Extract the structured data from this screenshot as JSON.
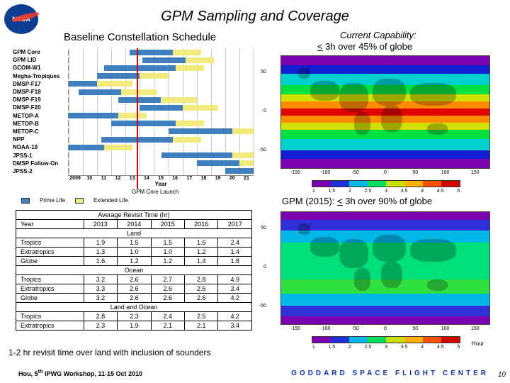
{
  "title": "GPM Sampling and Coverage",
  "subtitle_left": "Baseline Constellation Schedule",
  "capability_label": "Current Capability:",
  "capability_text_a": "<",
  "capability_text_b": " 3h over 45% of globe",
  "gpm2015_a": "GPM (2015): ",
  "gpm2015_b": "<",
  "gpm2015_c": " 3h over 90% of globe",
  "gantt": {
    "years": [
      "2009",
      "10",
      "11",
      "12",
      "13",
      "14",
      "15",
      "16",
      "17",
      "18",
      "19",
      "20",
      "21"
    ],
    "year_axis_label": "Year",
    "core_launch_label": "GPM Core Launch",
    "prime_color": "#3f7fbf",
    "extended_color": "#f2ea7a",
    "legend_prime": "Prime Life",
    "legend_extended": "Extended Life",
    "rows": [
      {
        "label": "GPM Core",
        "prime": [
          4.3,
          3.0
        ],
        "ext": [
          7.3,
          2.0
        ]
      },
      {
        "label": "GPM LID",
        "prime": [
          5.2,
          3.0
        ],
        "ext": [
          8.2,
          2.0
        ]
      },
      {
        "label": "GCOM-W1",
        "prime": [
          2.5,
          5.0
        ],
        "ext": [
          7.5,
          2.0
        ]
      },
      {
        "label": "Megha-Tropiques",
        "prime": [
          2.0,
          3.0
        ],
        "ext": [
          5.0,
          2.0
        ]
      },
      {
        "label": "DMSP-F17",
        "prime": [
          0.0,
          2.0
        ],
        "ext": [
          2.0,
          2.5
        ]
      },
      {
        "label": "DMSP-F18",
        "prime": [
          0.7,
          3.0
        ],
        "ext": [
          3.7,
          2.5
        ]
      },
      {
        "label": "DMSP-F19",
        "prime": [
          3.5,
          3.0
        ],
        "ext": [
          6.5,
          2.5
        ]
      },
      {
        "label": "DMSP-F20",
        "prime": [
          5.0,
          3.0
        ],
        "ext": [
          8.0,
          2.5
        ]
      },
      {
        "label": "METOP-A",
        "prime": [
          0.0,
          3.5
        ],
        "ext": [
          3.5,
          2.0
        ]
      },
      {
        "label": "METOP-B",
        "prime": [
          3.0,
          4.5
        ],
        "ext": [
          7.5,
          2.0
        ]
      },
      {
        "label": "METOP-C",
        "prime": [
          7.0,
          4.5
        ],
        "ext": [
          11.5,
          1.5
        ]
      },
      {
        "label": "NPP",
        "prime": [
          2.3,
          5.0
        ],
        "ext": [
          7.3,
          2.0
        ]
      },
      {
        "label": "NOAA-19",
        "prime": [
          0.0,
          2.5
        ],
        "ext": [
          2.5,
          2.0
        ]
      },
      {
        "label": "JPSS-1",
        "prime": [
          6.5,
          5.0
        ],
        "ext": [
          11.5,
          1.5
        ]
      },
      {
        "label": "DMSP Follow-On",
        "prime": [
          9.0,
          3.0
        ],
        "ext": [
          12.0,
          1.0
        ]
      },
      {
        "label": "JPSS-2",
        "prime": [
          11.0,
          2.0
        ],
        "ext": [
          0,
          0
        ]
      }
    ]
  },
  "table": {
    "title": "Average Revisit Time (hr)",
    "year_header": "Year",
    "years": [
      "2013",
      "2014",
      "2015",
      "2016",
      "2017"
    ],
    "sections": [
      {
        "name": "Land",
        "rows": [
          {
            "label": "Tropics",
            "vals": [
              "1.9",
              "1.5",
              "1.5",
              "1.6",
              "2.4"
            ]
          },
          {
            "label": "Extratropics",
            "vals": [
              "1.3",
              "1.0",
              "1.0",
              "1.2",
              "1.4"
            ]
          },
          {
            "label": "Globe",
            "vals": [
              "1.6",
              "1.2",
              "1.2",
              "1.4",
              "1.8"
            ]
          }
        ]
      },
      {
        "name": "Ocean",
        "rows": [
          {
            "label": "Tropics",
            "vals": [
              "3.2",
              "2.6",
              "2.7",
              "2.8",
              "4.9"
            ]
          },
          {
            "label": "Extratropics",
            "vals": [
              "3.3",
              "2.6",
              "2.6",
              "2.6",
              "3.4"
            ]
          },
          {
            "label": "Globe",
            "vals": [
              "3.2",
              "2.6",
              "2.6",
              "2.6",
              "4.2"
            ]
          }
        ]
      },
      {
        "name": "Land and Ocean",
        "rows": [
          {
            "label": "Tropics",
            "vals": [
              "2.8",
              "2.3",
              "2.4",
              "2.5",
              "4.2"
            ]
          },
          {
            "label": "Extratropics",
            "vals": [
              "2.3",
              "1.9",
              "2.1",
              "2.1",
              "3.4"
            ]
          }
        ]
      }
    ]
  },
  "footnote": "1-2 hr revisit time over land with inclusion of sounders",
  "citation_a": "Hou, 5",
  "citation_b": "th",
  "citation_c": "  IPWG Workshop, 11-15 Oct 2010",
  "center_label": "GODDARD SPACE FLIGHT CENTER",
  "page_number": "10",
  "hour_label": "Hour",
  "map": {
    "lat_ticks": [
      "50",
      "0",
      "-50"
    ],
    "lon_ticks": [
      "-150",
      "-100",
      "-50",
      "0",
      "50",
      "100",
      "150"
    ],
    "bands_top": [
      {
        "c": "#7b00b0",
        "h": 10
      },
      {
        "c": "#1020d0",
        "h": 10
      },
      {
        "c": "#00d0d0",
        "h": 12
      },
      {
        "c": "#00e040",
        "h": 10
      },
      {
        "c": "#d0e000",
        "h": 8
      },
      {
        "c": "#ff8c00",
        "h": 8
      },
      {
        "c": "#e00000",
        "h": 8
      },
      {
        "c": "#ff8c00",
        "h": 8
      },
      {
        "c": "#d0e000",
        "h": 8
      },
      {
        "c": "#00e040",
        "h": 10
      },
      {
        "c": "#00d0d0",
        "h": 12
      },
      {
        "c": "#1020d0",
        "h": 10
      },
      {
        "c": "#7b00b0",
        "h": 10
      }
    ],
    "bands_bot": [
      {
        "c": "#7b00b0",
        "h": 8
      },
      {
        "c": "#3030d8",
        "h": 10
      },
      {
        "c": "#00b8e8",
        "h": 12
      },
      {
        "c": "#00e07a",
        "h": 36
      },
      {
        "c": "#30e040",
        "h": 14
      },
      {
        "c": "#00e07a",
        "h": 0
      },
      {
        "c": "#00b8e8",
        "h": 12
      },
      {
        "c": "#3030d8",
        "h": 10
      },
      {
        "c": "#7b00b0",
        "h": 8
      }
    ],
    "colorbar": [
      "#7b00b0",
      "#2030d8",
      "#00b8e8",
      "#00e060",
      "#c8e000",
      "#ffb000",
      "#ff5000",
      "#d00000"
    ],
    "colorbar_labels": [
      "1",
      "1.5",
      "2",
      "2.5",
      "3",
      "3.5",
      "4",
      "4.5",
      "5"
    ]
  }
}
